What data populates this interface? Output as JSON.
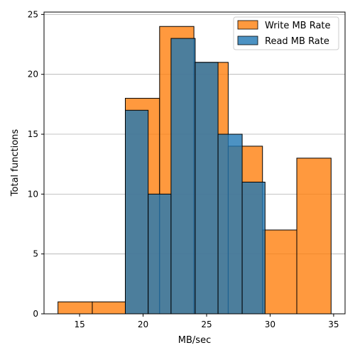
{
  "chart_data": {
    "type": "bar",
    "title": "",
    "xlabel": "MB/sec",
    "ylabel": "Total functions",
    "xlim": [
      12.2,
      35.9
    ],
    "ylim": [
      0,
      25.2
    ],
    "xticks": [
      15,
      20,
      25,
      30,
      35
    ],
    "yticks": [
      0,
      5,
      10,
      15,
      20,
      25
    ],
    "grid": "horizontal",
    "legend_position": "top-right",
    "series": [
      {
        "name": "Write MB Rate",
        "color": "#ff7f0e",
        "bins": [
          {
            "x0": 13.3,
            "x1": 16.0,
            "count": 1
          },
          {
            "x0": 16.0,
            "x1": 18.6,
            "count": 1
          },
          {
            "x0": 18.6,
            "x1": 21.3,
            "count": 18
          },
          {
            "x0": 21.3,
            "x1": 24.0,
            "count": 24
          },
          {
            "x0": 24.0,
            "x1": 26.7,
            "count": 21
          },
          {
            "x0": 26.7,
            "x1": 29.4,
            "count": 14
          },
          {
            "x0": 29.4,
            "x1": 32.1,
            "count": 7
          },
          {
            "x0": 32.1,
            "x1": 34.8,
            "count": 13
          }
        ]
      },
      {
        "name": "Read MB Rate",
        "color": "#1f77b4",
        "bins": [
          {
            "x0": 18.6,
            "x1": 20.4,
            "count": 17
          },
          {
            "x0": 20.4,
            "x1": 22.2,
            "count": 10
          },
          {
            "x0": 22.2,
            "x1": 24.1,
            "count": 23
          },
          {
            "x0": 24.1,
            "x1": 25.9,
            "count": 21
          },
          {
            "x0": 25.9,
            "x1": 27.8,
            "count": 15
          },
          {
            "x0": 27.8,
            "x1": 29.6,
            "count": 11
          }
        ]
      }
    ]
  }
}
